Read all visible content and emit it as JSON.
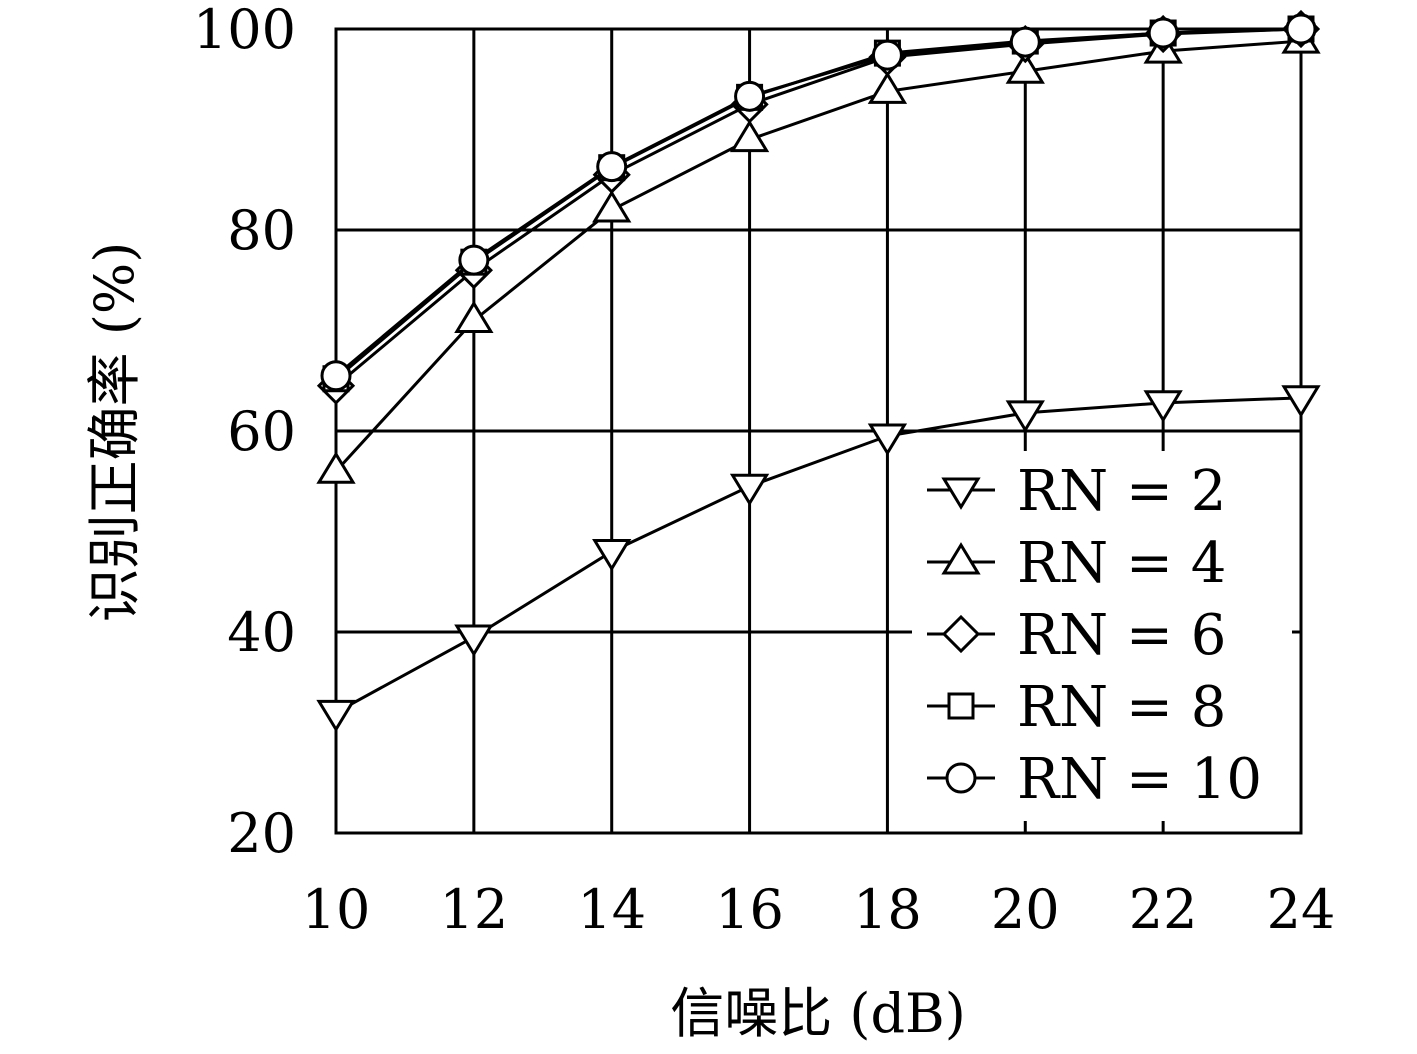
{
  "chart_data": {
    "type": "line",
    "title": "",
    "xlabel": "信噪比 (dB)",
    "ylabel": "识别正确率 (%)",
    "x": [
      10,
      12,
      14,
      16,
      18,
      20,
      22,
      24
    ],
    "xticks": [
      "10",
      "12",
      "14",
      "16",
      "18",
      "20",
      "22",
      "24"
    ],
    "yticks": [
      "20",
      "40",
      "60",
      "80",
      "100"
    ],
    "xlim": [
      10,
      24
    ],
    "ylim": [
      20,
      100
    ],
    "grid": true,
    "legend_position": "bottom-right",
    "series": [
      {
        "name": "RN = 2",
        "marker": "triangle-down",
        "values": [
          32,
          39.5,
          48,
          54.5,
          59.5,
          61.8,
          62.8,
          63.3
        ]
      },
      {
        "name": "RN = 4",
        "marker": "triangle-up",
        "values": [
          56,
          71,
          82,
          89,
          93.8,
          95.8,
          97.8,
          98.8
        ]
      },
      {
        "name": "RN = 6",
        "marker": "diamond",
        "values": [
          64.5,
          76,
          85.5,
          92.5,
          97.2,
          98.5,
          99.5,
          100
        ]
      },
      {
        "name": "RN = 8",
        "marker": "square",
        "values": [
          65.2,
          76.8,
          86.2,
          93.2,
          97.6,
          98.8,
          99.6,
          100
        ]
      },
      {
        "name": "RN = 10",
        "marker": "circle",
        "values": [
          65.5,
          77,
          86.3,
          93.3,
          97.4,
          98.7,
          99.6,
          100
        ]
      }
    ]
  }
}
